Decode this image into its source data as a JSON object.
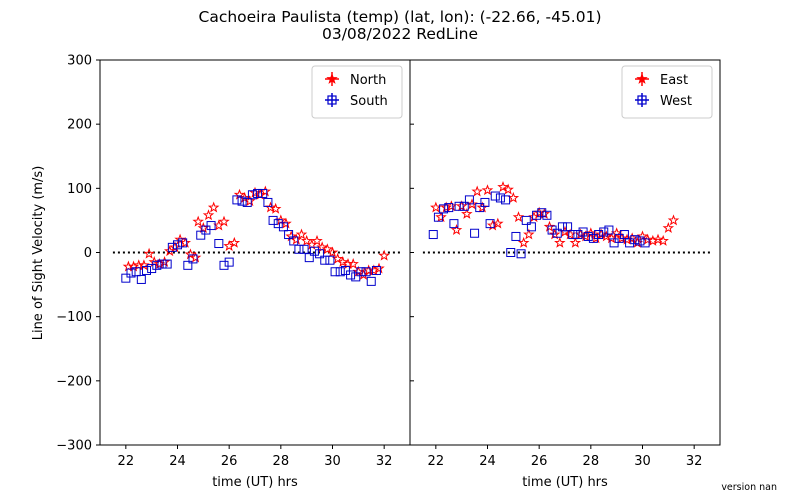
{
  "figure": {
    "title_line1": "Cachoeira Paulista (temp)  (lat, lon):  (-22.66, -45.01)",
    "title_line2": "03/08/2022 RedLine",
    "version": "version nan"
  },
  "chart_data": [
    {
      "type": "scatter",
      "panel": "left",
      "xlabel": "time (UT) hrs",
      "ylabel": "Line of Sight Velocity (m/s)",
      "xlim": [
        21,
        33
      ],
      "ylim": [
        -300,
        300
      ],
      "xticks": [
        22,
        24,
        26,
        28,
        30,
        32
      ],
      "yticks": [
        -300,
        -200,
        -100,
        0,
        100,
        200,
        300
      ],
      "xtick_labels": [
        "22",
        "24",
        "26",
        "28",
        "30",
        "32"
      ],
      "ytick_labels": [
        "−300",
        "−200",
        "−100",
        "0",
        "100",
        "200",
        "300"
      ],
      "zero_line": true,
      "legend_position": "upper right",
      "series": [
        {
          "name": "North",
          "color": "#ff0000",
          "marker": "star",
          "points": [
            [
              22.1,
              -22
            ],
            [
              22.3,
              -22
            ],
            [
              22.5,
              -20
            ],
            [
              22.7,
              -20
            ],
            [
              22.9,
              -2
            ],
            [
              23.1,
              -15
            ],
            [
              23.3,
              -18
            ],
            [
              23.5,
              -15
            ],
            [
              23.7,
              2
            ],
            [
              23.9,
              8
            ],
            [
              24.1,
              20
            ],
            [
              24.3,
              15
            ],
            [
              24.5,
              -3
            ],
            [
              24.7,
              -8
            ],
            [
              24.8,
              48
            ],
            [
              25.0,
              38
            ],
            [
              25.2,
              58
            ],
            [
              25.4,
              70
            ],
            [
              25.6,
              42
            ],
            [
              25.8,
              48
            ],
            [
              26.0,
              10
            ],
            [
              26.2,
              15
            ],
            [
              26.4,
              90
            ],
            [
              26.6,
              85
            ],
            [
              26.8,
              80
            ],
            [
              27.0,
              93
            ],
            [
              27.2,
              90
            ],
            [
              27.4,
              95
            ],
            [
              27.6,
              70
            ],
            [
              27.8,
              68
            ],
            [
              28.0,
              50
            ],
            [
              28.2,
              45
            ],
            [
              28.4,
              25
            ],
            [
              28.6,
              20
            ],
            [
              28.8,
              28
            ],
            [
              29.0,
              18
            ],
            [
              29.2,
              12
            ],
            [
              29.4,
              18
            ],
            [
              29.6,
              8
            ],
            [
              29.8,
              5
            ],
            [
              30.0,
              0
            ],
            [
              30.2,
              -10
            ],
            [
              30.4,
              -15
            ],
            [
              30.6,
              -18
            ],
            [
              30.8,
              -18
            ],
            [
              31.0,
              -30
            ],
            [
              31.2,
              -35
            ],
            [
              31.4,
              -28
            ],
            [
              31.6,
              -28
            ],
            [
              31.8,
              -25
            ],
            [
              32.0,
              -5
            ]
          ]
        },
        {
          "name": "South",
          "color": "#0000cc",
          "marker": "square",
          "points": [
            [
              22.0,
              -40
            ],
            [
              22.2,
              -32
            ],
            [
              22.4,
              -30
            ],
            [
              22.6,
              -42
            ],
            [
              22.8,
              -28
            ],
            [
              23.0,
              -25
            ],
            [
              23.2,
              -20
            ],
            [
              23.4,
              -18
            ],
            [
              23.6,
              -18
            ],
            [
              23.8,
              8
            ],
            [
              24.0,
              12
            ],
            [
              24.2,
              15
            ],
            [
              24.4,
              -20
            ],
            [
              24.6,
              -10
            ],
            [
              24.9,
              27
            ],
            [
              25.1,
              35
            ],
            [
              25.3,
              42
            ],
            [
              25.6,
              14
            ],
            [
              25.8,
              -20
            ],
            [
              26.0,
              -15
            ],
            [
              26.3,
              82
            ],
            [
              26.5,
              80
            ],
            [
              26.7,
              78
            ],
            [
              26.9,
              90
            ],
            [
              27.1,
              92
            ],
            [
              27.3,
              92
            ],
            [
              27.5,
              78
            ],
            [
              27.7,
              50
            ],
            [
              27.9,
              45
            ],
            [
              28.1,
              40
            ],
            [
              28.3,
              28
            ],
            [
              28.5,
              18
            ],
            [
              28.7,
              5
            ],
            [
              28.9,
              5
            ],
            [
              29.1,
              -8
            ],
            [
              29.3,
              2
            ],
            [
              29.5,
              -2
            ],
            [
              29.7,
              -12
            ],
            [
              29.9,
              -12
            ],
            [
              30.1,
              -30
            ],
            [
              30.3,
              -30
            ],
            [
              30.5,
              -28
            ],
            [
              30.7,
              -35
            ],
            [
              30.9,
              -38
            ],
            [
              31.1,
              -30
            ],
            [
              31.3,
              -30
            ],
            [
              31.5,
              -45
            ],
            [
              31.7,
              -28
            ]
          ]
        }
      ]
    },
    {
      "type": "scatter",
      "panel": "right",
      "xlabel": "time (UT) hrs",
      "ylabel": "",
      "xlim": [
        21,
        33
      ],
      "ylim": [
        -300,
        300
      ],
      "xticks": [
        22,
        24,
        26,
        28,
        30,
        32
      ],
      "xtick_labels": [
        "22",
        "24",
        "26",
        "28",
        "30",
        "32"
      ],
      "zero_line": true,
      "legend_position": "upper right",
      "series": [
        {
          "name": "East",
          "color": "#ff0000",
          "marker": "star",
          "points": [
            [
              22.0,
              70
            ],
            [
              22.2,
              55
            ],
            [
              22.4,
              70
            ],
            [
              22.6,
              72
            ],
            [
              22.8,
              35
            ],
            [
              23.0,
              72
            ],
            [
              23.2,
              60
            ],
            [
              23.4,
              75
            ],
            [
              23.6,
              95
            ],
            [
              23.8,
              70
            ],
            [
              24.0,
              97
            ],
            [
              24.2,
              42
            ],
            [
              24.4,
              45
            ],
            [
              24.6,
              102
            ],
            [
              24.8,
              98
            ],
            [
              25.0,
              85
            ],
            [
              25.2,
              55
            ],
            [
              25.4,
              15
            ],
            [
              25.6,
              28
            ],
            [
              25.8,
              55
            ],
            [
              26.0,
              62
            ],
            [
              26.2,
              60
            ],
            [
              26.4,
              40
            ],
            [
              26.6,
              28
            ],
            [
              26.8,
              15
            ],
            [
              27.0,
              32
            ],
            [
              27.2,
              28
            ],
            [
              27.4,
              15
            ],
            [
              27.6,
              28
            ],
            [
              27.8,
              25
            ],
            [
              28.0,
              30
            ],
            [
              28.2,
              22
            ],
            [
              28.4,
              28
            ],
            [
              28.6,
              25
            ],
            [
              28.8,
              22
            ],
            [
              29.0,
              30
            ],
            [
              29.2,
              22
            ],
            [
              29.4,
              20
            ],
            [
              29.6,
              22
            ],
            [
              29.8,
              15
            ],
            [
              30.0,
              25
            ],
            [
              30.2,
              20
            ],
            [
              30.4,
              18
            ],
            [
              30.6,
              20
            ],
            [
              30.8,
              18
            ],
            [
              31.0,
              38
            ],
            [
              31.2,
              50
            ]
          ]
        },
        {
          "name": "West",
          "color": "#0000cc",
          "marker": "square",
          "points": [
            [
              21.9,
              28
            ],
            [
              22.1,
              55
            ],
            [
              22.3,
              68
            ],
            [
              22.5,
              70
            ],
            [
              22.7,
              45
            ],
            [
              22.9,
              72
            ],
            [
              23.1,
              72
            ],
            [
              23.3,
              82
            ],
            [
              23.5,
              30
            ],
            [
              23.7,
              70
            ],
            [
              23.9,
              78
            ],
            [
              24.1,
              45
            ],
            [
              24.3,
              88
            ],
            [
              24.5,
              85
            ],
            [
              24.7,
              82
            ],
            [
              24.9,
              0
            ],
            [
              25.1,
              25
            ],
            [
              25.3,
              -2
            ],
            [
              25.5,
              50
            ],
            [
              25.7,
              40
            ],
            [
              25.9,
              58
            ],
            [
              26.1,
              62
            ],
            [
              26.3,
              58
            ],
            [
              26.5,
              35
            ],
            [
              26.7,
              30
            ],
            [
              26.9,
              40
            ],
            [
              27.1,
              40
            ],
            [
              27.3,
              28
            ],
            [
              27.5,
              28
            ],
            [
              27.7,
              32
            ],
            [
              27.9,
              25
            ],
            [
              28.1,
              22
            ],
            [
              28.3,
              28
            ],
            [
              28.5,
              32
            ],
            [
              28.7,
              35
            ],
            [
              28.9,
              15
            ],
            [
              29.1,
              22
            ],
            [
              29.3,
              28
            ],
            [
              29.5,
              15
            ],
            [
              29.7,
              20
            ],
            [
              29.9,
              18
            ],
            [
              30.1,
              15
            ]
          ]
        }
      ]
    }
  ]
}
